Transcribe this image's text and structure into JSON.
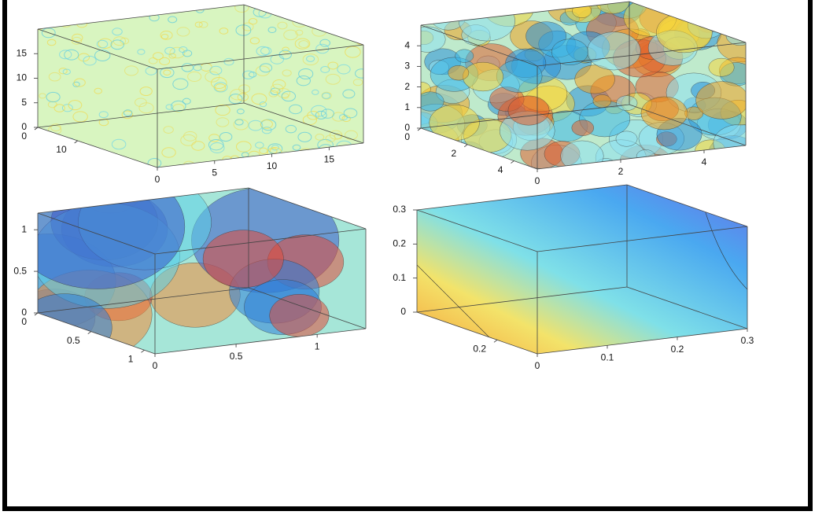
{
  "chart_data": [
    {
      "type": "volume",
      "xlim": [
        0,
        18
      ],
      "xticks": [
        0,
        5,
        10,
        15
      ],
      "ylim": [
        0,
        30
      ],
      "yticks": [
        0,
        10
      ],
      "zlim": [
        0,
        20
      ],
      "zticks": [
        0,
        5,
        10,
        15
      ]
    },
    {
      "type": "volume",
      "xlim": [
        0,
        5
      ],
      "xticks": [
        0,
        2,
        4
      ],
      "ylim": [
        0,
        5
      ],
      "yticks": [
        0,
        2,
        4
      ],
      "zlim": [
        0,
        5
      ],
      "zticks": [
        0,
        1,
        2,
        3,
        4
      ]
    },
    {
      "type": "volume",
      "xlim": [
        0,
        1.3
      ],
      "xticks": [
        0,
        0.5,
        1
      ],
      "ylim": [
        0,
        1.1
      ],
      "yticks": [
        0,
        0.5,
        1
      ],
      "zlim": [
        0,
        1.2
      ],
      "zticks": [
        0,
        0.5,
        1
      ]
    },
    {
      "type": "volume",
      "xlim": [
        0,
        0.3
      ],
      "xticks": [
        0,
        0.1,
        0.2,
        0.3
      ],
      "ylim": [
        0,
        0.3
      ],
      "yticks": [
        0.2
      ],
      "zlim": [
        0,
        0.3
      ],
      "zticks": [
        0,
        0.1,
        0.2,
        0.3
      ]
    }
  ]
}
